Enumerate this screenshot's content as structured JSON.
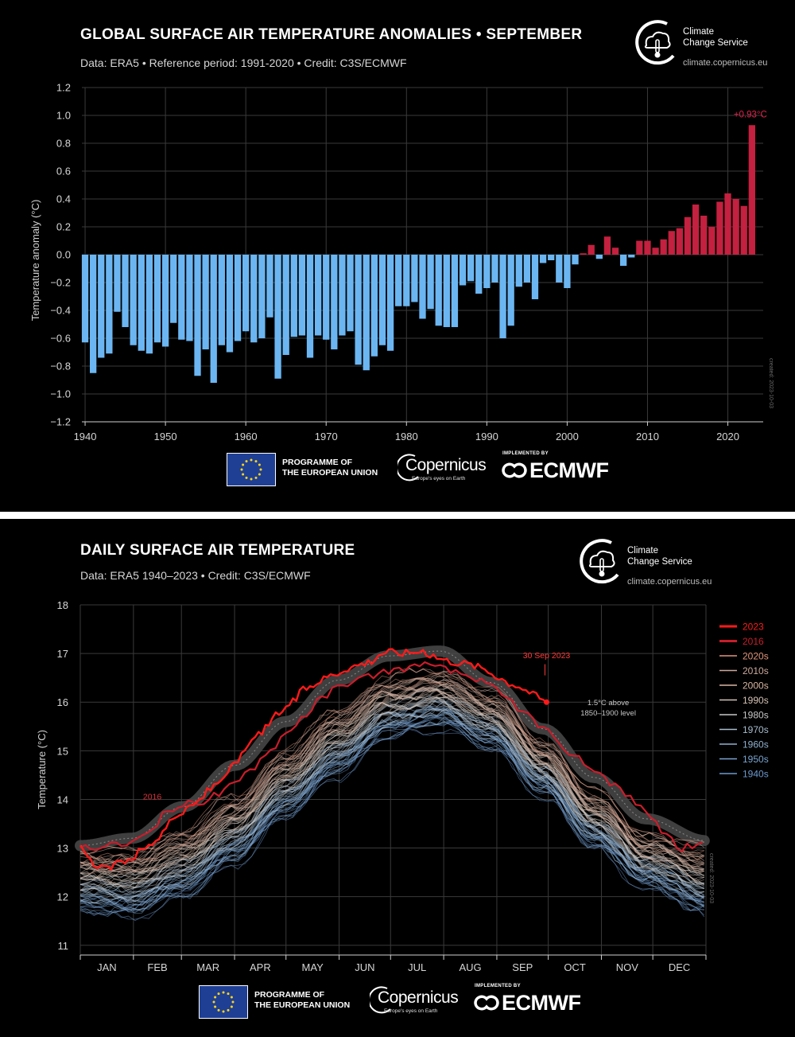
{
  "colors": {
    "background": "#000000",
    "negative_bar": "#6bb6f2",
    "positive_bar": "#c4203f",
    "highlight_red": "#ff1a1a",
    "red_2016": "#c91d2b",
    "grid": "#3a3a3a"
  },
  "charts": [
    {
      "title": "GLOBAL SURFACE AIR TEMPERATURE ANOMALIES • SEPTEMBER",
      "subtitle": "Data: ERA5 • Reference period: 1991-2020 • Credit: C3S/ECMWF",
      "watermark": "created: 2023-10-03"
    },
    {
      "title": "DAILY SURFACE AIR TEMPERATURE",
      "subtitle": "Data: ERA5 1940–2023 • Credit: C3S/ECMWF",
      "watermark": "created: 2023-10-03"
    }
  ],
  "logos": {
    "c3s_name": "Climate\nChange Service",
    "c3s_url": "climate.copernicus.eu",
    "eu_programme": "PROGRAMME OF\nTHE EUROPEAN UNION",
    "copernicus": "Copernicus",
    "copernicus_tagline": "Europe's eyes on Earth",
    "implemented_by": "IMPLEMENTED BY",
    "ecmwf": "ECMWF"
  },
  "chart_data": [
    {
      "type": "bar",
      "title": "GLOBAL SURFACE AIR TEMPERATURE ANOMALIES • SEPTEMBER",
      "ylabel": "Temperature anomaly (°C)",
      "ylim": [
        -1.2,
        1.2
      ],
      "yticks": [
        -1.2,
        -1.0,
        -0.8,
        -0.6,
        -0.4,
        -0.2,
        0.0,
        0.2,
        0.4,
        0.6,
        0.8,
        1.0,
        1.2
      ],
      "ytick_labels": [
        "−1.2",
        "−1.0",
        "−0.8",
        "−0.6",
        "−0.4",
        "−0.2",
        "0.0",
        "0.2",
        "0.4",
        "0.6",
        "0.8",
        "1.0",
        "1.2"
      ],
      "xticks": [
        1940,
        1950,
        1960,
        1970,
        1980,
        1990,
        2000,
        2010,
        2020
      ],
      "xlim": [
        1939.6,
        2024.4
      ],
      "grid": true,
      "annotation": {
        "year": 2023,
        "label": "+0.93°C"
      },
      "years": [
        1940,
        1941,
        1942,
        1943,
        1944,
        1945,
        1946,
        1947,
        1948,
        1949,
        1950,
        1951,
        1952,
        1953,
        1954,
        1955,
        1956,
        1957,
        1958,
        1959,
        1960,
        1961,
        1962,
        1963,
        1964,
        1965,
        1966,
        1967,
        1968,
        1969,
        1970,
        1971,
        1972,
        1973,
        1974,
        1975,
        1976,
        1977,
        1978,
        1979,
        1980,
        1981,
        1982,
        1983,
        1984,
        1985,
        1986,
        1987,
        1988,
        1989,
        1990,
        1991,
        1992,
        1993,
        1994,
        1995,
        1996,
        1997,
        1998,
        1999,
        2000,
        2001,
        2002,
        2003,
        2004,
        2005,
        2006,
        2007,
        2008,
        2009,
        2010,
        2011,
        2012,
        2013,
        2014,
        2015,
        2016,
        2017,
        2018,
        2019,
        2020,
        2021,
        2022,
        2023
      ],
      "values": [
        -0.63,
        -0.85,
        -0.74,
        -0.71,
        -0.41,
        -0.52,
        -0.65,
        -0.69,
        -0.71,
        -0.63,
        -0.66,
        -0.49,
        -0.61,
        -0.62,
        -0.87,
        -0.68,
        -0.92,
        -0.65,
        -0.7,
        -0.62,
        -0.55,
        -0.63,
        -0.6,
        -0.45,
        -0.89,
        -0.72,
        -0.59,
        -0.58,
        -0.74,
        -0.58,
        -0.61,
        -0.68,
        -0.58,
        -0.55,
        -0.79,
        -0.83,
        -0.73,
        -0.65,
        -0.69,
        -0.37,
        -0.37,
        -0.34,
        -0.46,
        -0.39,
        -0.51,
        -0.52,
        -0.52,
        -0.22,
        -0.19,
        -0.28,
        -0.24,
        -0.2,
        -0.6,
        -0.51,
        -0.23,
        -0.2,
        -0.32,
        -0.06,
        -0.04,
        -0.2,
        -0.24,
        -0.07,
        0.01,
        0.07,
        -0.03,
        0.13,
        0.05,
        -0.08,
        -0.02,
        0.1,
        0.1,
        0.05,
        0.11,
        0.17,
        0.19,
        0.27,
        0.36,
        0.28,
        0.2,
        0.38,
        0.44,
        0.4,
        0.35,
        0.93
      ]
    },
    {
      "type": "line",
      "title": "DAILY SURFACE AIR TEMPERATURE",
      "ylabel": "Temperature (°C)",
      "ylim": [
        10.8,
        18
      ],
      "yticks": [
        11,
        12,
        13,
        14,
        15,
        16,
        17,
        18
      ],
      "months": [
        "JAN",
        "FEB",
        "MAR",
        "APR",
        "MAY",
        "JUN",
        "JUL",
        "AUG",
        "SEP",
        "OCT",
        "NOV",
        "DEC"
      ],
      "xlim": [
        0,
        365
      ],
      "grid": true,
      "legend_position": "top-right",
      "legend": [
        {
          "label": "2023",
          "color": "#ff1a1a"
        },
        {
          "label": "2016",
          "color": "#c91d2b"
        },
        {
          "label": "2020s",
          "color": "#e2957a"
        },
        {
          "label": "2010s",
          "color": "#cda99c"
        },
        {
          "label": "2000s",
          "color": "#d9b5a2"
        },
        {
          "label": "1990s",
          "color": "#d6c2b5"
        },
        {
          "label": "1980s",
          "color": "#c8c8c8"
        },
        {
          "label": "1970s",
          "color": "#a8bccd"
        },
        {
          "label": "1960s",
          "color": "#8fb0cf"
        },
        {
          "label": "1950s",
          "color": "#7aa4d0"
        },
        {
          "label": "1940s",
          "color": "#6d99cf"
        }
      ],
      "threshold_band": {
        "label": "1.5°C above\n1850–1900 level",
        "day": [
          0,
          30,
          60,
          90,
          120,
          150,
          180,
          210,
          240,
          270,
          300,
          330,
          365
        ],
        "temp": [
          13.05,
          13.2,
          13.85,
          14.7,
          15.6,
          16.45,
          16.95,
          17.05,
          16.4,
          15.45,
          14.45,
          13.6,
          13.15
        ]
      },
      "annotation_2023": {
        "label": "30 Sep 2023",
        "day": 272,
        "temp": 16.0
      },
      "annotation_2016": {
        "label": "2016"
      },
      "series_2023": {
        "day": [
          0,
          5,
          10,
          15,
          20,
          25,
          30,
          35,
          40,
          45,
          50,
          55,
          60,
          65,
          70,
          75,
          80,
          85,
          90,
          95,
          100,
          105,
          110,
          115,
          120,
          125,
          130,
          135,
          140,
          145,
          150,
          155,
          160,
          165,
          170,
          175,
          180,
          185,
          190,
          195,
          200,
          205,
          210,
          215,
          220,
          225,
          230,
          235,
          240,
          245,
          250,
          255,
          260,
          265,
          270,
          272
        ],
        "temp": [
          13.0,
          12.75,
          12.65,
          12.55,
          12.65,
          12.75,
          12.8,
          12.95,
          13.05,
          13.2,
          13.45,
          13.6,
          13.75,
          13.85,
          14.0,
          14.2,
          14.35,
          14.55,
          14.7,
          14.95,
          15.15,
          15.35,
          15.55,
          15.75,
          15.9,
          16.05,
          16.25,
          16.35,
          16.45,
          16.55,
          16.6,
          16.7,
          16.75,
          16.8,
          16.85,
          17.0,
          17.05,
          17.0,
          17.02,
          17.05,
          17.0,
          16.98,
          16.9,
          16.85,
          16.82,
          16.8,
          16.75,
          16.7,
          16.6,
          16.5,
          16.4,
          16.35,
          16.25,
          16.15,
          16.05,
          16.0
        ]
      },
      "series_2016": {
        "day": [
          0,
          10,
          20,
          30,
          40,
          50,
          60,
          70,
          80,
          90,
          100,
          110,
          120,
          130,
          140,
          150,
          160,
          170,
          180,
          190,
          200,
          210,
          220,
          230,
          240,
          250,
          260,
          270,
          280,
          290,
          300,
          310,
          320,
          330,
          340,
          350,
          360,
          365
        ],
        "temp": [
          13.0,
          13.0,
          13.05,
          13.1,
          13.35,
          13.7,
          13.9,
          13.95,
          14.1,
          14.3,
          14.65,
          15.0,
          15.35,
          15.7,
          16.05,
          16.3,
          16.45,
          16.55,
          16.65,
          16.7,
          16.75,
          16.7,
          16.6,
          16.5,
          16.3,
          16.05,
          15.75,
          15.45,
          15.1,
          14.85,
          14.6,
          14.35,
          14.05,
          13.75,
          13.35,
          13.0,
          13.05,
          13.05
        ]
      },
      "decade_climatology": {
        "day": [
          0,
          30,
          60,
          90,
          120,
          150,
          180,
          210,
          240,
          270,
          300,
          330,
          365
        ],
        "temp_1940s": [
          11.8,
          11.7,
          12.1,
          12.8,
          13.75,
          14.6,
          15.4,
          15.6,
          15.15,
          14.2,
          13.1,
          12.3,
          11.75
        ],
        "temp_2020s": [
          12.85,
          12.85,
          13.25,
          13.95,
          14.9,
          15.75,
          16.4,
          16.55,
          16.1,
          15.1,
          14.05,
          13.2,
          12.9
        ]
      }
    }
  ]
}
